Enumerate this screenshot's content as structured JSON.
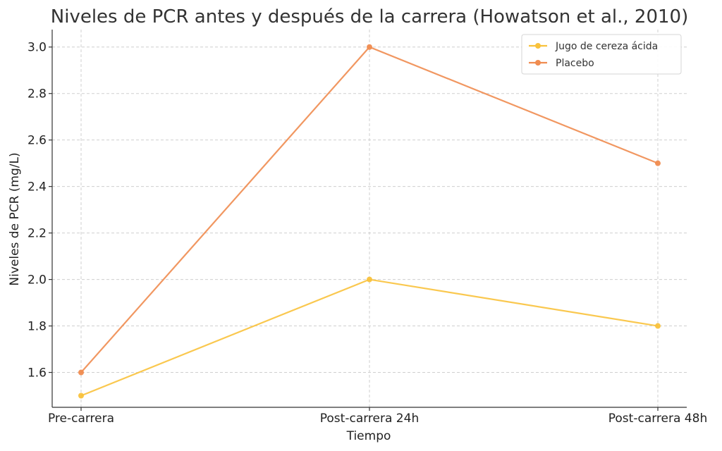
{
  "chart_data": {
    "type": "line",
    "title": "Niveles de PCR antes y después de la carrera (Howatson et al., 2010)",
    "xlabel": "Tiempo",
    "ylabel": "Niveles de PCR (mg/L)",
    "categories": [
      "Pre-carrera",
      "Post-carrera 24h",
      "Post-carrera 48h"
    ],
    "ylim": [
      1.45,
      3.075
    ],
    "yticks": [
      "1.6",
      "1.8",
      "2.0",
      "2.2",
      "2.4",
      "2.6",
      "2.8",
      "3.0"
    ],
    "grid": true,
    "legend_position": "top-right",
    "series": [
      {
        "name": "Jugo de cereza ácida",
        "values": [
          1.5,
          2.0,
          1.8
        ],
        "color": "#f9c23c"
      },
      {
        "name": "Placebo",
        "values": [
          1.6,
          3.0,
          2.5
        ],
        "color": "#f08c50"
      }
    ]
  }
}
